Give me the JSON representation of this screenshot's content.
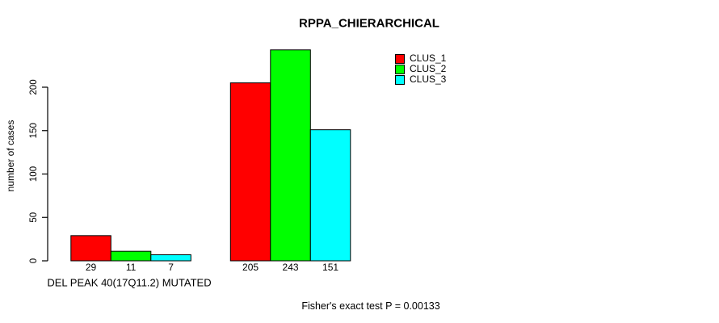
{
  "chart_data": {
    "type": "bar",
    "title": "RPPA_CHIERARCHICAL",
    "ylabel": "number of cases",
    "xlabel": "DEL PEAK 40(17Q11.2) MUTATED",
    "categories": [
      "DEL PEAK 40(17Q11.2) MUTATED",
      ""
    ],
    "series": [
      {
        "name": "CLUS_1",
        "color": "#ff0000",
        "values": [
          29,
          205
        ]
      },
      {
        "name": "CLUS_2",
        "color": "#00ff00",
        "values": [
          11,
          243
        ]
      },
      {
        "name": "CLUS_3",
        "color": "#00ffff",
        "values": [
          7,
          151
        ]
      }
    ],
    "bar_value_labels": [
      [
        29,
        11,
        7
      ],
      [
        205,
        243,
        151
      ]
    ],
    "yticks": [
      0,
      50,
      100,
      150,
      200
    ],
    "ylim": [
      0,
      250
    ],
    "grid": false,
    "legend_position": "top-right",
    "bar_border_color": "#000000",
    "annotation": "Fisher's exact test P = 0.00133"
  }
}
